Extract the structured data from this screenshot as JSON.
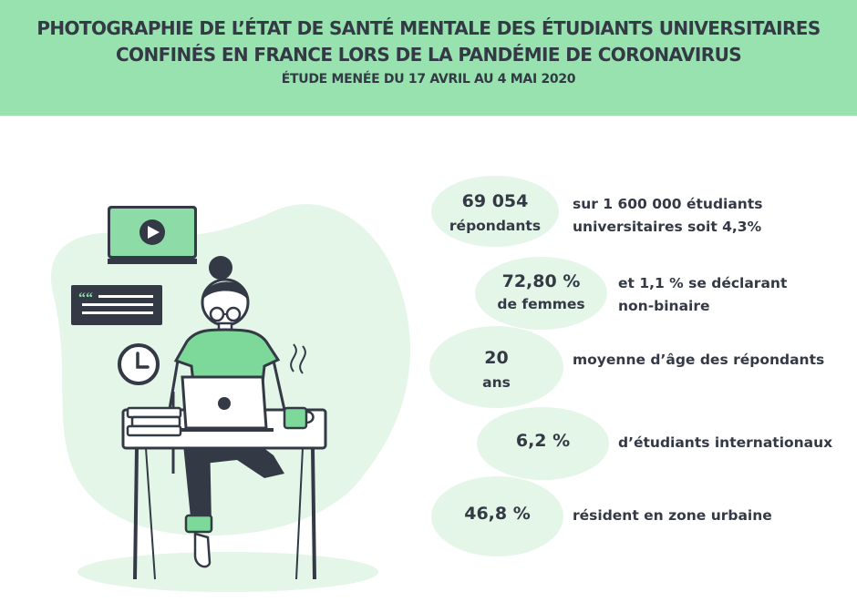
{
  "header": {
    "title_line1": "PHOTOGRAPHIE DE L’ÉTAT DE SANTÉ MENTALE DES ÉTUDIANTS UNIVERSITAIRES",
    "title_line2": "CONFINÉS EN FRANCE LORS DE LA PANDÉMIE DE CORONAVIRUS",
    "subtitle": "ÉTUDE MENÉE DU 17 AVRIL AU 4 MAI 2020"
  },
  "colors": {
    "header_bg": "#97e2ae",
    "bubble_bg": "#e3f6e8",
    "accent_green": "#7dd99a",
    "text": "#333a45"
  },
  "illustration": {
    "icons": [
      "video-play-icon",
      "quote-message-icon",
      "clock-icon",
      "laptop-icon",
      "coffee-mug-icon",
      "books-icon"
    ]
  },
  "stats": [
    {
      "value": "69 054",
      "unit": "répondants",
      "desc_line1": "sur 1 600 000 étudiants",
      "desc_line2": "universitaires soit 4,3%"
    },
    {
      "value": "72,80 %",
      "unit": "de femmes",
      "desc_line1": "et 1,1 % se déclarant",
      "desc_line2": "non-binaire"
    },
    {
      "value": "20",
      "unit": "ans",
      "desc_line1": "moyenne d’âge des répondants"
    },
    {
      "value": "6,2 %",
      "desc_line1": "d’étudiants internationaux"
    },
    {
      "value": "46,8 %",
      "desc_line1": "résident en zone urbaine"
    }
  ]
}
